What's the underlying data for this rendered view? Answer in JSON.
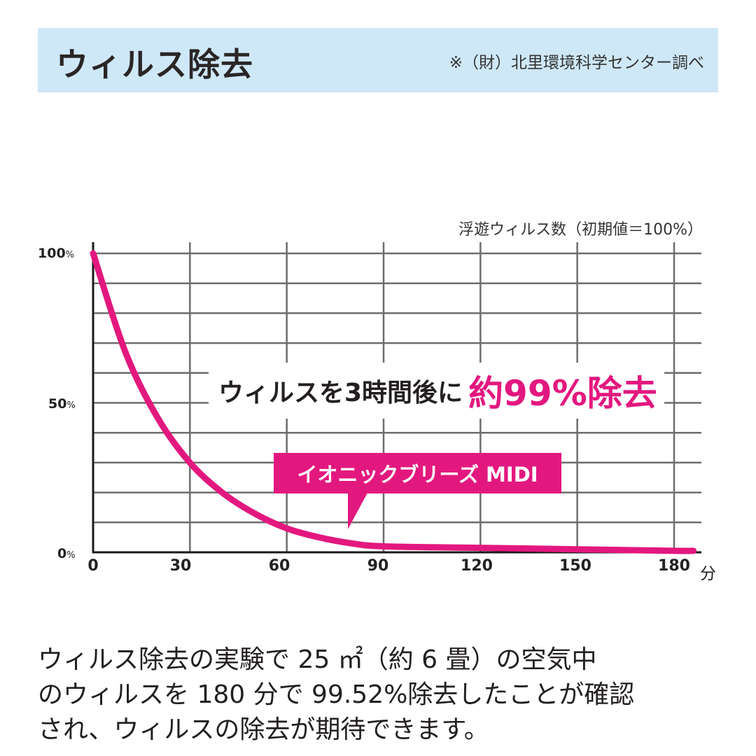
{
  "header": {
    "title": "ウィルス除去",
    "source_note": "※（財）北里環境科学センター調べ",
    "background_color": "#cfe8f8"
  },
  "chart": {
    "unit_label": "浮遊ウィルス数（初期値＝100%）",
    "y_labels": [
      {
        "value": "100",
        "suffix": "%"
      },
      {
        "value": "50",
        "suffix": "%"
      },
      {
        "value": "0",
        "suffix": "%"
      }
    ],
    "x_labels": [
      "0",
      "30",
      "60",
      "90",
      "120",
      "150",
      "180"
    ],
    "x_unit": "分",
    "headline_dark": "ウィルスを3時間後に",
    "headline_pink": "約99%除去",
    "callout_label": "イオニックブリーズ MIDI",
    "accent_color": "#e3187f",
    "grid_color": "#6d6d6d"
  },
  "description": {
    "lines": [
      "ウィルス除去の実験で 25 ㎡（約 6 畳）の空気中",
      "のウィルスを 180 分で 99.52%除去したことが確認",
      "され、ウィルスの除去が期待できます。"
    ]
  },
  "chart_data": {
    "type": "line",
    "title": "ウィルス除去",
    "subtitle": "※（財）北里環境科学センター調べ",
    "xlabel": "分",
    "ylabel": "浮遊ウィルス数（初期値＝100%）",
    "x_ticks": [
      0,
      30,
      60,
      90,
      120,
      150,
      180
    ],
    "y_ticks": [
      "0%",
      "50%",
      "100%"
    ],
    "xlim": [
      0,
      186
    ],
    "ylim": [
      0,
      100
    ],
    "grid": true,
    "grid_y_step": 10,
    "grid_x_step": 30,
    "legend": "callout label 'イオニックブリーズ MIDI' pointing at curve near 80 min",
    "annotations": [
      "ウィルスを3時間後に 約99%除去"
    ],
    "series": [
      {
        "name": "イオニックブリーズ MIDI",
        "x": [
          0,
          10,
          20,
          30,
          40,
          50,
          60,
          70,
          80,
          90,
          120,
          150,
          180,
          186
        ],
        "values": [
          100,
          67,
          45,
          30,
          20,
          13,
          8,
          5,
          3,
          2,
          1.5,
          1,
          0.5,
          0.5
        ]
      }
    ]
  }
}
